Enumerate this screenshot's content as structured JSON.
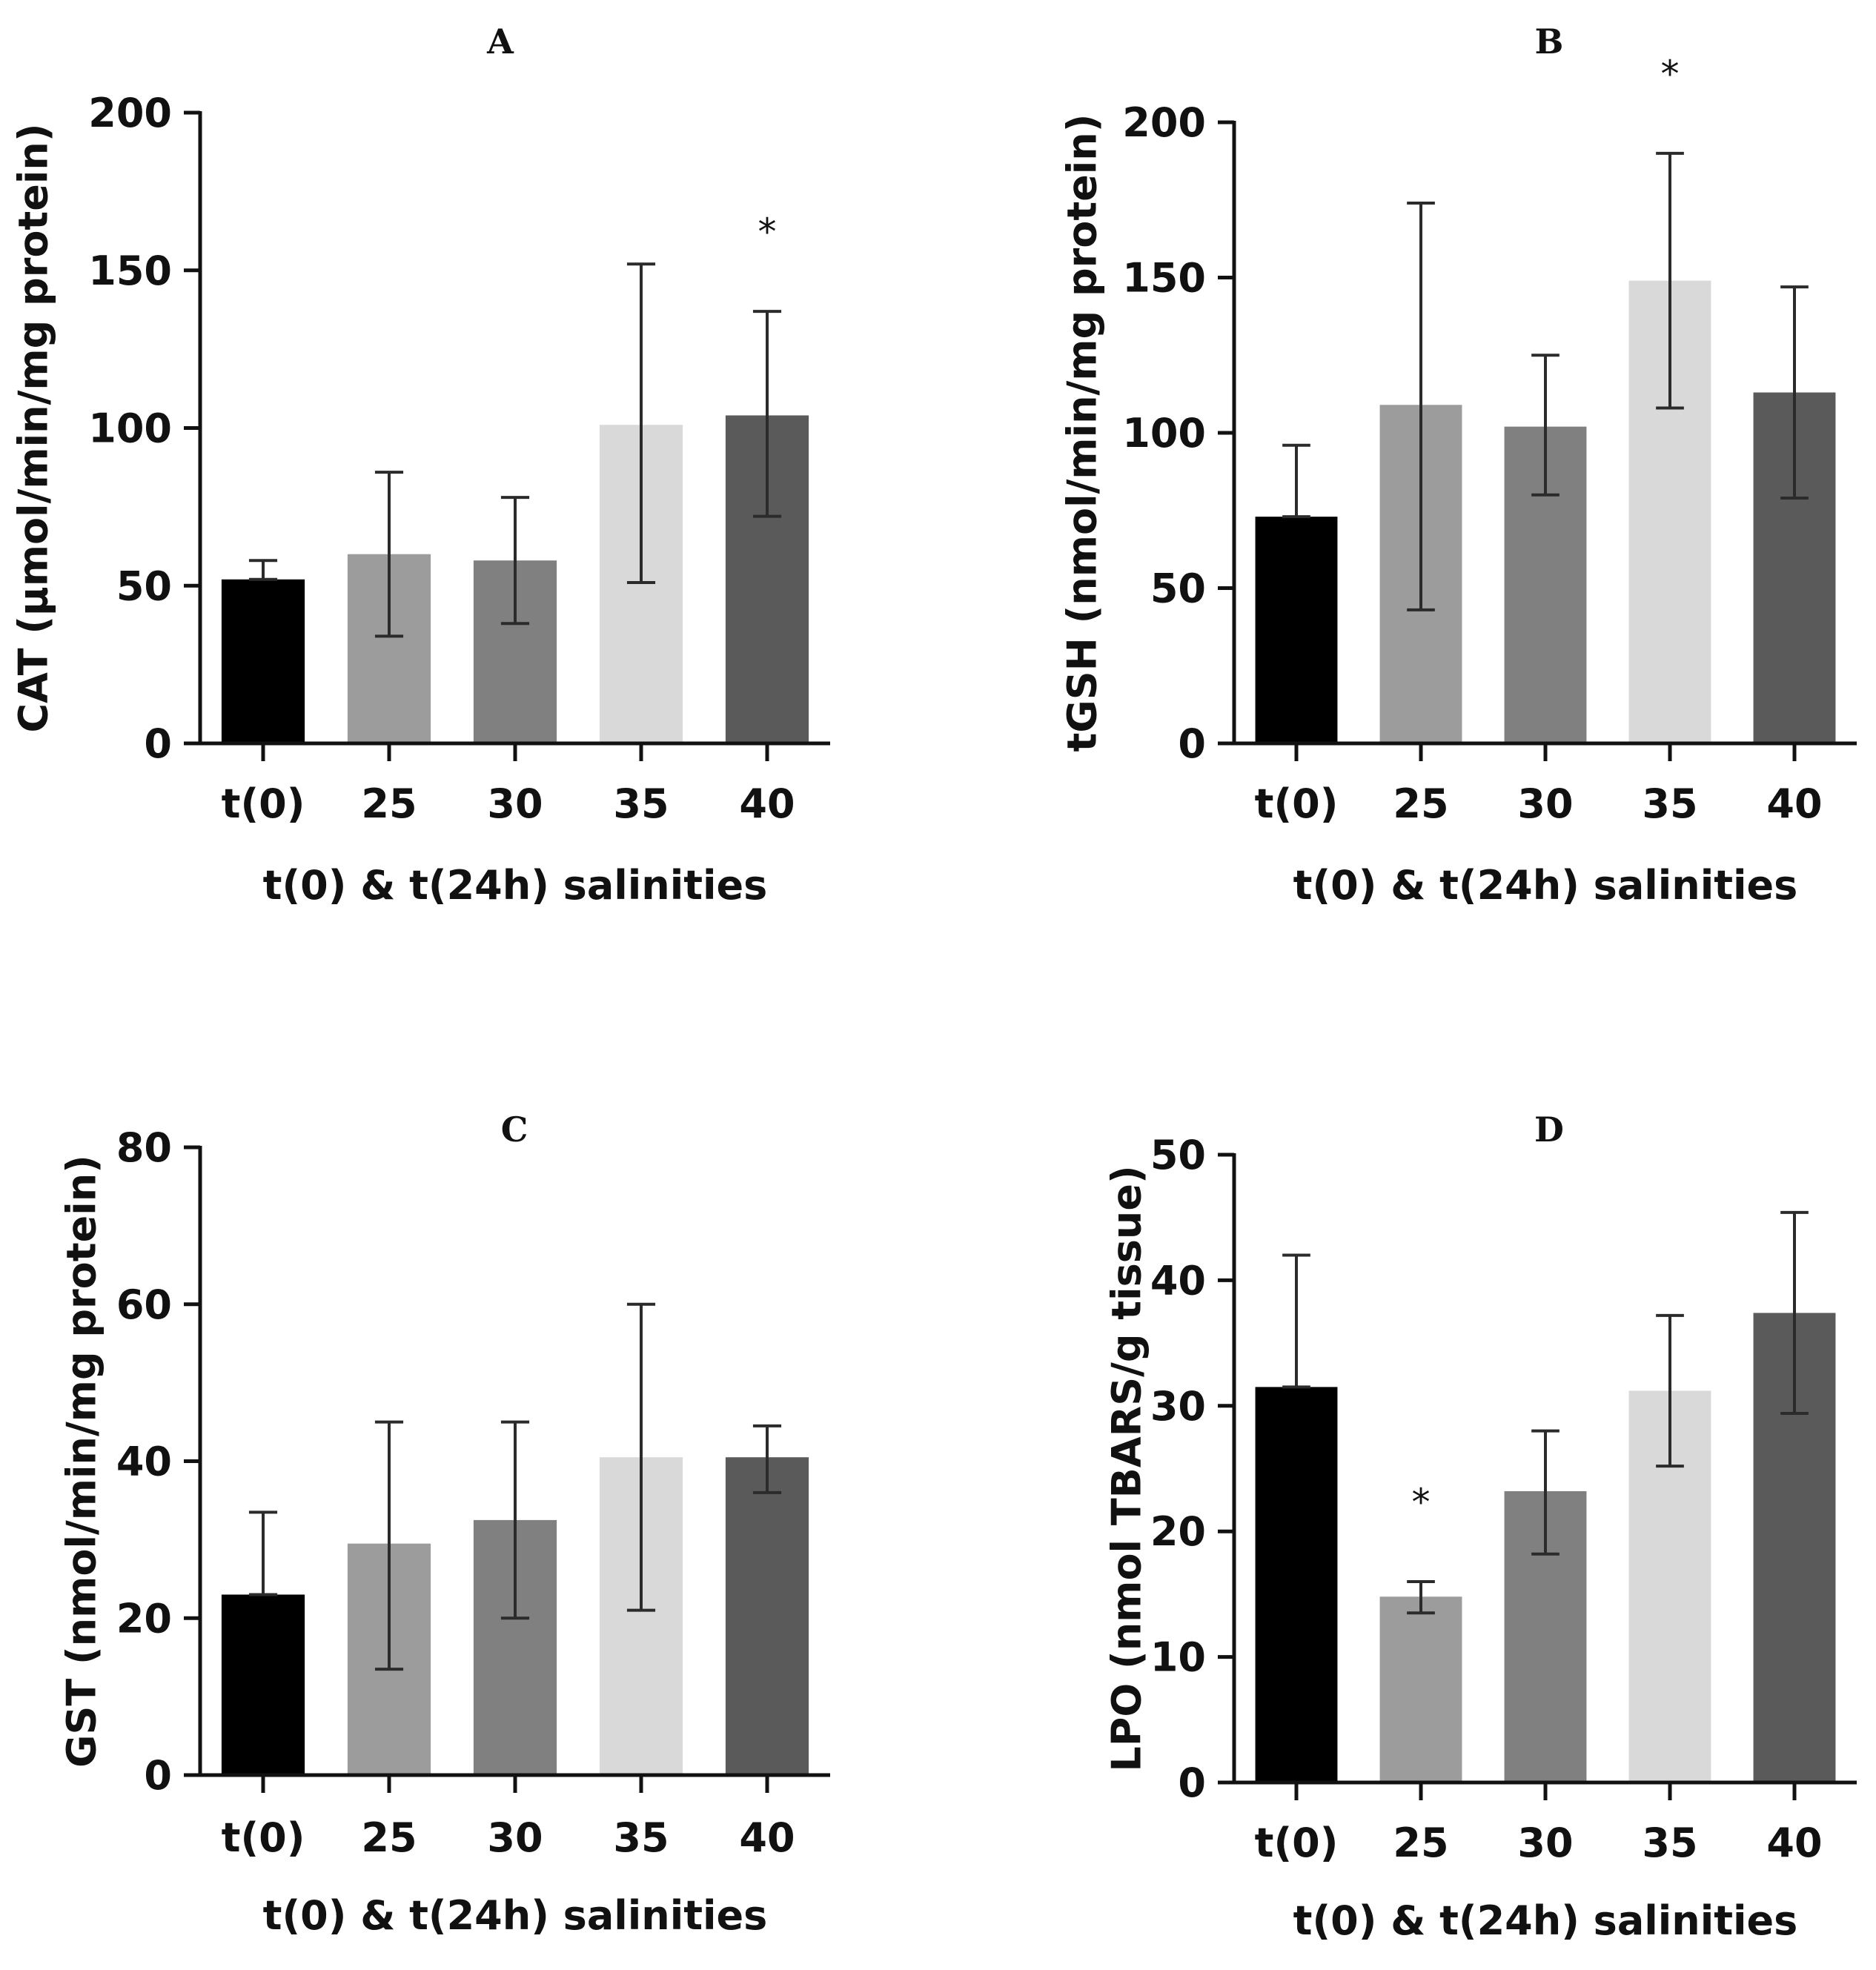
{
  "chart_data": [
    {
      "type": "bar",
      "panel": "A",
      "title": "A",
      "ylabel": "CAT (µmol/min/mg protein)",
      "xlabel": "t(0) & t(24h) salinities",
      "categories": [
        "t(0)",
        "25",
        "30",
        "35",
        "40"
      ],
      "values": [
        52,
        60,
        58,
        101,
        104
      ],
      "error_low": [
        52,
        34,
        38,
        51,
        72
      ],
      "error_high": [
        58,
        86,
        78,
        152,
        137
      ],
      "significance": [
        "",
        "",
        "",
        "",
        "*"
      ],
      "ylim": [
        0,
        200
      ],
      "yticks": [
        0,
        50,
        100,
        150,
        200
      ],
      "colors": [
        "#000000",
        "#9c9c9c",
        "#808080",
        "#d9d9d9",
        "#5a5a5a"
      ]
    },
    {
      "type": "bar",
      "panel": "B",
      "title": "B",
      "ylabel": "tGSH (nmol/min/mg protein)",
      "xlabel": "t(0) & t(24h) salinities",
      "categories": [
        "t(0)",
        "25",
        "30",
        "35",
        "40"
      ],
      "values": [
        73,
        109,
        102,
        149,
        113
      ],
      "error_low": [
        73,
        43,
        80,
        108,
        79
      ],
      "error_high": [
        96,
        174,
        125,
        190,
        147
      ],
      "significance": [
        "",
        "",
        "",
        "*",
        ""
      ],
      "ylim": [
        0,
        200
      ],
      "yticks": [
        0,
        50,
        100,
        150,
        200
      ],
      "colors": [
        "#000000",
        "#9c9c9c",
        "#808080",
        "#d9d9d9",
        "#5a5a5a"
      ]
    },
    {
      "type": "bar",
      "panel": "C",
      "title": "C",
      "ylabel": "GST (nmol/min/mg protein)",
      "xlabel": "t(0) & t(24h) salinities",
      "categories": [
        "t(0)",
        "25",
        "30",
        "35",
        "40"
      ],
      "values": [
        23,
        29.5,
        32.5,
        40.5,
        40.5
      ],
      "error_low": [
        23,
        13.5,
        20,
        21,
        36
      ],
      "error_high": [
        33.5,
        45,
        45,
        60,
        44.5
      ],
      "significance": [
        "",
        "",
        "",
        "",
        ""
      ],
      "ylim": [
        0,
        80
      ],
      "yticks": [
        0,
        20,
        40,
        60,
        80
      ],
      "colors": [
        "#000000",
        "#9c9c9c",
        "#808080",
        "#d9d9d9",
        "#5a5a5a"
      ]
    },
    {
      "type": "bar",
      "panel": "D",
      "title": "D",
      "ylabel": "LPO (nmol TBARS/g tissue)",
      "xlabel": "t(0) & t(24h) salinities",
      "categories": [
        "t(0)",
        "25",
        "30",
        "35",
        "40"
      ],
      "values": [
        31.5,
        14.8,
        23.2,
        31.2,
        37.4
      ],
      "error_low": [
        31.5,
        13.5,
        18.2,
        25.2,
        29.4
      ],
      "error_high": [
        42,
        16,
        28,
        37.2,
        45.4
      ],
      "significance": [
        "",
        "*",
        "",
        "",
        ""
      ],
      "ylim": [
        0,
        50
      ],
      "yticks": [
        0,
        10,
        20,
        30,
        40,
        50
      ],
      "colors": [
        "#000000",
        "#9c9c9c",
        "#808080",
        "#d9d9d9",
        "#5a5a5a"
      ]
    }
  ]
}
